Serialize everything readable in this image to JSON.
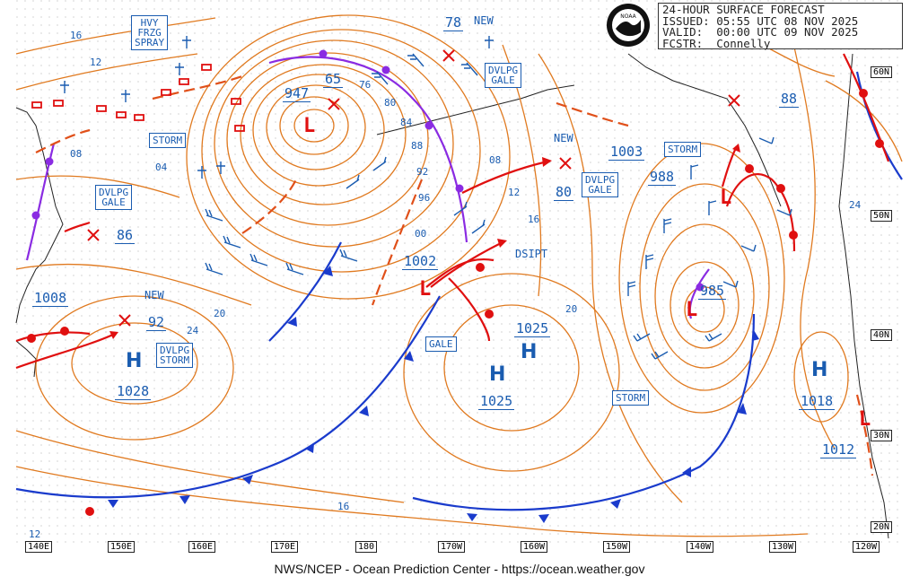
{
  "header": {
    "line1": "24-HOUR SURFACE FORECAST",
    "line2": "ISSUED: 05:55 UTC 08 NOV 2025",
    "line3": "VALID:  00:00 UTC 09 NOV 2025",
    "line4": "FCSTR:  Connelly"
  },
  "logo_text": "NOAA",
  "footer": "NWS/NCEP - Ocean Prediction Center - https://ocean.weather.gov",
  "lon_labels": [
    "140E",
    "150E",
    "160E",
    "170E",
    "180",
    "170W",
    "160W",
    "150W",
    "140W",
    "130W",
    "120W"
  ],
  "lat_labels": [
    "60N",
    "50N",
    "40N",
    "30N",
    "20N"
  ],
  "warnings": {
    "hvy_frzg_spray": [
      "HVY",
      "FRZG",
      "SPRAY"
    ],
    "storm_w": "STORM",
    "dvlpg_gale_w": [
      "DVLPG",
      "GALE"
    ],
    "dvlpg_storm": [
      "DVLPG",
      "STORM"
    ],
    "dvlpg_gale_n": [
      "DVLPG",
      "GALE"
    ],
    "dvlpg_gale_c": [
      "DVLPG",
      "GALE"
    ],
    "storm_e": "STORM",
    "storm_s": "STORM",
    "gale": "GALE"
  },
  "systems": {
    "low_947": "947",
    "low_1002": "1002",
    "low_985": "985",
    "low_1003": "1003",
    "low_988": "988",
    "low_1008": "1008",
    "low_1012": "1012",
    "high_1028": "1028",
    "high_1025a": "1025",
    "high_1025b": "1025",
    "high_1018": "1018",
    "new_label": "NEW",
    "dsipt_label": "DSIPT"
  },
  "fcst_values": {
    "v65": "65",
    "v78": "78",
    "v86": "86",
    "v92": "92",
    "v80": "80",
    "v88": "88"
  },
  "isobar_labels": [
    "08",
    "04",
    "16",
    "12",
    "20",
    "24",
    "76",
    "80",
    "84",
    "88",
    "92",
    "96",
    "00",
    "08",
    "12",
    "16",
    "20",
    "24",
    "16",
    "12"
  ]
}
